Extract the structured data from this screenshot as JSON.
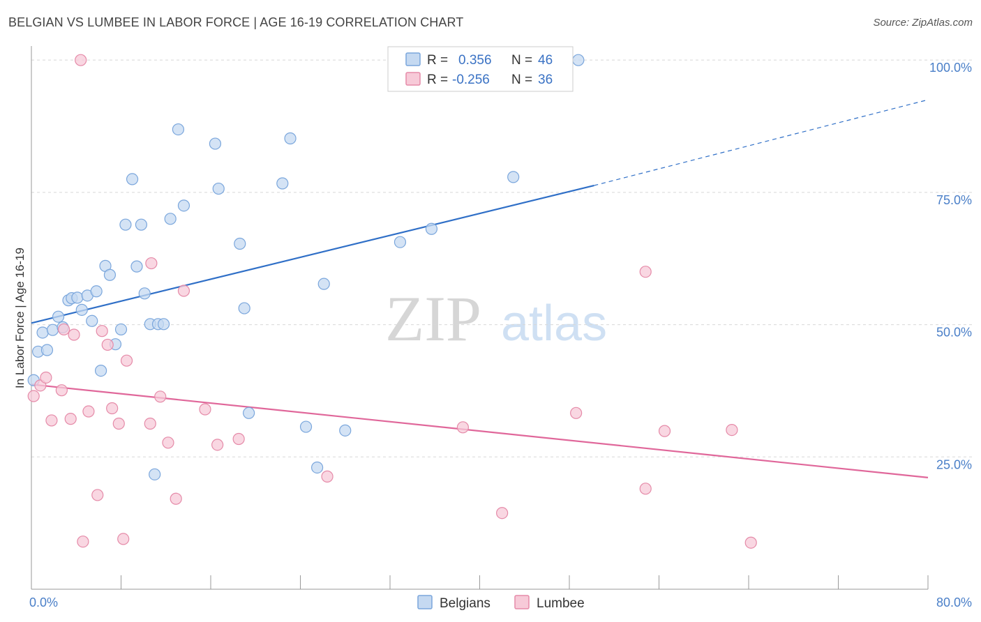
{
  "title": "BELGIAN VS LUMBEE IN LABOR FORCE | AGE 16-19 CORRELATION CHART",
  "source": "Source: ZipAtlas.com",
  "watermark": {
    "zip": "ZIP",
    "atlas": "atlas"
  },
  "colors": {
    "blue_fill": "#c5d9f1",
    "blue_stroke": "#7aa6dc",
    "blue_line": "#2f6fc7",
    "pink_fill": "#f7cad8",
    "pink_stroke": "#e58aa8",
    "pink_line": "#e0679a",
    "grid": "#d8d8d8",
    "axis": "#9a9a9a",
    "tick_text": "#4a7fc8"
  },
  "legend": {
    "items": [
      {
        "r_label": "R =",
        "r_value": "0.356",
        "n_label": "N =",
        "n_value": "46"
      },
      {
        "r_label": "R =",
        "r_value": "-0.256",
        "n_label": "N =",
        "n_value": "36"
      }
    ]
  },
  "chart_data": {
    "type": "scatter",
    "title": "BELGIAN VS LUMBEE IN LABOR FORCE | AGE 16-19 CORRELATION CHART",
    "xlabel": "",
    "ylabel": "In Labor Force | Age 16-19",
    "xlim": [
      0,
      80
    ],
    "ylim": [
      0,
      102
    ],
    "x_tick_labels": [
      {
        "value": 0,
        "label": "0.0%"
      },
      {
        "value": 80,
        "label": "80.0%"
      }
    ],
    "y_tick_labels": [
      {
        "value": 25,
        "label": "25.0%"
      },
      {
        "value": 50,
        "label": "50.0%"
      },
      {
        "value": 75,
        "label": "75.0%"
      },
      {
        "value": 100,
        "label": "100.0%"
      }
    ],
    "x_minor_ticks": [
      0,
      8,
      16,
      24,
      32,
      40,
      48,
      56,
      64,
      72,
      80
    ],
    "grid": true,
    "legend_position": "top-center",
    "series": [
      {
        "name": "Belgians",
        "color": "#7aa6dc",
        "points": [
          [
            0.2,
            39.5
          ],
          [
            0.6,
            44.9
          ],
          [
            1.0,
            48.5
          ],
          [
            1.4,
            45.2
          ],
          [
            1.9,
            49.0
          ],
          [
            2.4,
            51.5
          ],
          [
            2.8,
            49.5
          ],
          [
            3.3,
            54.6
          ],
          [
            3.6,
            55.0
          ],
          [
            4.1,
            55.1
          ],
          [
            4.5,
            52.8
          ],
          [
            5.0,
            55.5
          ],
          [
            5.4,
            50.7
          ],
          [
            5.8,
            56.3
          ],
          [
            6.2,
            41.3
          ],
          [
            6.6,
            61.1
          ],
          [
            7.0,
            59.4
          ],
          [
            7.5,
            46.3
          ],
          [
            8.0,
            49.1
          ],
          [
            8.4,
            68.9
          ],
          [
            9.0,
            77.5
          ],
          [
            9.4,
            61.0
          ],
          [
            9.8,
            68.9
          ],
          [
            10.1,
            55.9
          ],
          [
            10.6,
            50.1
          ],
          [
            11.3,
            50.1
          ],
          [
            11.0,
            21.7
          ],
          [
            11.8,
            50.1
          ],
          [
            12.4,
            70.0
          ],
          [
            13.1,
            86.9
          ],
          [
            13.6,
            72.5
          ],
          [
            16.4,
            84.2
          ],
          [
            16.7,
            75.7
          ],
          [
            18.6,
            65.3
          ],
          [
            19.0,
            53.1
          ],
          [
            19.4,
            33.3
          ],
          [
            22.4,
            76.7
          ],
          [
            23.1,
            85.2
          ],
          [
            24.5,
            30.7
          ],
          [
            25.5,
            23.0
          ],
          [
            26.1,
            57.7
          ],
          [
            28.0,
            30.0
          ],
          [
            32.9,
            65.6
          ],
          [
            35.7,
            68.1
          ],
          [
            43.0,
            77.9
          ],
          [
            48.8,
            100.0
          ]
        ],
        "trend": {
          "x": [
            0,
            50.2
          ],
          "y": [
            50.3,
            76.3
          ]
        },
        "trend_extension": {
          "x": [
            50.2,
            80
          ],
          "y": [
            76.3,
            92.5
          ]
        }
      },
      {
        "name": "Lumbee",
        "color": "#e58aa8",
        "points": [
          [
            0.2,
            36.5
          ],
          [
            0.8,
            38.5
          ],
          [
            1.3,
            40.0
          ],
          [
            1.8,
            31.9
          ],
          [
            2.7,
            37.6
          ],
          [
            2.9,
            49.1
          ],
          [
            3.5,
            32.2
          ],
          [
            3.8,
            48.1
          ],
          [
            4.4,
            100.0
          ],
          [
            4.6,
            9.0
          ],
          [
            5.1,
            33.6
          ],
          [
            5.9,
            17.8
          ],
          [
            6.3,
            48.8
          ],
          [
            6.8,
            46.2
          ],
          [
            7.2,
            34.2
          ],
          [
            7.8,
            31.3
          ],
          [
            8.2,
            9.5
          ],
          [
            8.5,
            43.2
          ],
          [
            10.6,
            31.3
          ],
          [
            10.7,
            61.6
          ],
          [
            11.5,
            36.4
          ],
          [
            12.2,
            27.7
          ],
          [
            12.9,
            17.1
          ],
          [
            13.6,
            56.4
          ],
          [
            15.5,
            34.0
          ],
          [
            16.6,
            27.3
          ],
          [
            18.5,
            28.4
          ],
          [
            26.4,
            21.3
          ],
          [
            38.5,
            30.6
          ],
          [
            42.0,
            14.4
          ],
          [
            48.6,
            33.3
          ],
          [
            54.8,
            60.0
          ],
          [
            54.8,
            19.0
          ],
          [
            56.5,
            29.9
          ],
          [
            62.5,
            30.1
          ],
          [
            64.2,
            8.8
          ]
        ],
        "trend": {
          "x": [
            0,
            80
          ],
          "y": [
            38.7,
            21.1
          ]
        }
      }
    ]
  }
}
